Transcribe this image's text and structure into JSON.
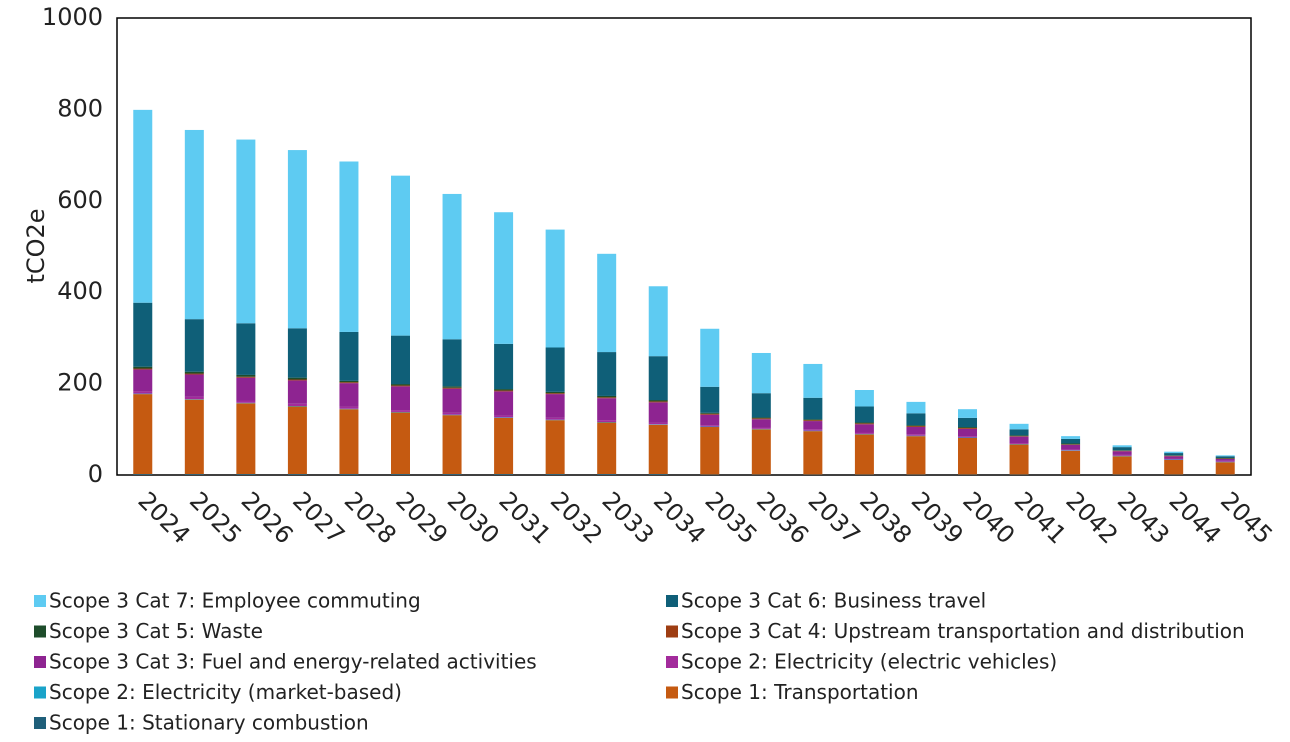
{
  "chart_data": {
    "type": "bar",
    "stacked": true,
    "xlabel": "",
    "ylabel": "tCO2e",
    "ylim": [
      0,
      1000
    ],
    "yticks": [
      0,
      200,
      400,
      600,
      800,
      1000
    ],
    "grid": false,
    "legend_position": "bottom",
    "categories": [
      "2024",
      "2025",
      "2026",
      "2027",
      "2028",
      "2029",
      "2030",
      "2031",
      "2032",
      "2033",
      "2034",
      "2035",
      "2036",
      "2037",
      "2038",
      "2039",
      "2040",
      "2041",
      "2042",
      "2043",
      "2044",
      "2045"
    ],
    "series": [
      {
        "name": "Scope 1: Stationary combustion",
        "color": "#1f5f7a",
        "values": [
          2,
          2,
          2,
          2,
          2,
          2,
          2,
          2,
          2,
          2,
          2,
          1,
          1,
          1,
          1,
          1,
          1,
          1,
          1,
          1,
          1,
          1
        ]
      },
      {
        "name": "Scope 1: Transportation",
        "color": "#c55a11",
        "values": [
          175,
          163,
          155,
          148,
          142,
          135,
          129,
          123,
          118,
          113,
          108,
          104,
          99,
          95,
          88,
          84,
          80,
          66,
          52,
          40,
          32,
          27
        ]
      },
      {
        "name": "Scope 2: Electricity (market-based)",
        "color": "#1aa3c9",
        "values": [
          1,
          1,
          1,
          1,
          1,
          1,
          1,
          1,
          1,
          1,
          1,
          1,
          1,
          1,
          1,
          1,
          1,
          1,
          1,
          1,
          1,
          1
        ]
      },
      {
        "name": "Scope 2: Electricity (electric vehicles)",
        "color": "#a32b9c",
        "values": [
          5,
          5,
          5,
          5,
          4,
          4,
          4,
          4,
          4,
          4,
          3,
          3,
          3,
          3,
          3,
          3,
          3,
          2,
          2,
          2,
          2,
          2
        ]
      },
      {
        "name": "Scope 3 Cat 3: Fuel and energy-related activities",
        "color": "#8e2491",
        "values": [
          48,
          49,
          50,
          51,
          52,
          52,
          53,
          53,
          52,
          48,
          45,
          23,
          18,
          18,
          18,
          16,
          16,
          14,
          10,
          8,
          5,
          4
        ]
      },
      {
        "name": "Scope 3 Cat 4: Upstream transportation and distribution",
        "color": "#9e3d12",
        "values": [
          2,
          2,
          2,
          2,
          2,
          2,
          2,
          2,
          2,
          2,
          2,
          2,
          2,
          2,
          2,
          2,
          2,
          1,
          1,
          1,
          1,
          1
        ]
      },
      {
        "name": "Scope 3 Cat 5: Waste",
        "color": "#1e4d2b",
        "values": [
          4,
          4,
          4,
          4,
          3,
          3,
          3,
          3,
          3,
          3,
          3,
          2,
          2,
          2,
          2,
          2,
          2,
          2,
          2,
          1,
          1,
          1
        ]
      },
      {
        "name": "Scope 3 Cat 6: Business travel",
        "color": "#0f5f78",
        "values": [
          140,
          115,
          113,
          108,
          107,
          106,
          103,
          99,
          97,
          96,
          96,
          57,
          53,
          47,
          35,
          26,
          20,
          13,
          10,
          7,
          5,
          4
        ]
      },
      {
        "name": "Scope 3 Cat 7: Employee commuting",
        "color": "#5ecbf2",
        "values": [
          422,
          414,
          402,
          390,
          373,
          350,
          318,
          288,
          258,
          215,
          153,
          127,
          88,
          74,
          36,
          25,
          19,
          12,
          6,
          4,
          3,
          2
        ]
      }
    ],
    "legend_entries": [
      "Scope 3 Cat 7: Employee commuting",
      "Scope 3 Cat 6: Business travel",
      "Scope 3 Cat 5: Waste",
      "Scope 3 Cat 4: Upstream transportation and distribution",
      "Scope 3 Cat 3: Fuel and energy-related activities",
      "Scope 2: Electricity (electric vehicles)",
      "Scope 2: Electricity (market-based)",
      "Scope 1: Transportation",
      "Scope 1: Stationary combustion"
    ]
  }
}
